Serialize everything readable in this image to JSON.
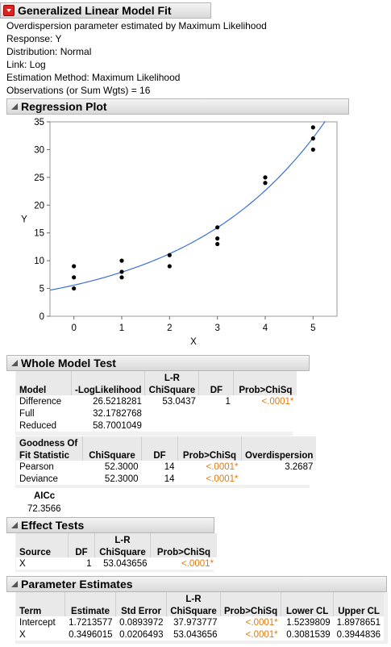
{
  "report": {
    "title": "Generalized Linear Model Fit",
    "info": [
      "Overdispersion parameter estimated by Maximum Likelihood",
      "Response: Y",
      "Distribution: Normal",
      "Link: Log",
      "Estimation Method: Maximum Likelihood",
      "Observations (or Sum Wgts) = 16"
    ]
  },
  "regression_plot": {
    "title": "Regression Plot",
    "chart_data": {
      "type": "scatter",
      "xlabel": "X",
      "ylabel": "Y",
      "xlim": [
        -0.5,
        5.5
      ],
      "ylim": [
        0,
        35
      ],
      "x_ticks": [
        "0",
        "1",
        "2",
        "3",
        "4",
        "5"
      ],
      "y_ticks": [
        "0",
        "5",
        "10",
        "15",
        "20",
        "25",
        "30",
        "35"
      ],
      "grid": false,
      "series": [
        {
          "points": [
            [
              0,
              9
            ],
            [
              0,
              7
            ],
            [
              0,
              5
            ],
            [
              1,
              10
            ],
            [
              1,
              8
            ],
            [
              1,
              7
            ],
            [
              2,
              11
            ],
            [
              2,
              9
            ],
            [
              3,
              16
            ],
            [
              3,
              14
            ],
            [
              3,
              13
            ],
            [
              4,
              25
            ],
            [
              4,
              24
            ],
            [
              5,
              34
            ],
            [
              5,
              32
            ],
            [
              5,
              30
            ]
          ]
        }
      ],
      "fit_curve": {
        "type": "line",
        "model": "exp(1.7213577 + 0.3496015*x)",
        "x_range": [
          -0.5,
          5.3
        ],
        "color": "#3b6fd8"
      }
    }
  },
  "whole_model_test": {
    "title": "Whole Model Test",
    "table1": {
      "headers": [
        [
          "",
          "Model"
        ],
        [
          "",
          "-LogLikelihood"
        ],
        [
          "L-R",
          "ChiSquare"
        ],
        [
          "",
          "DF"
        ],
        [
          "",
          "Prob>ChiSq"
        ]
      ],
      "rows": [
        [
          "Difference",
          "26.5218281",
          "53.0437",
          "1",
          "<.0001*"
        ],
        [
          "Full",
          "32.1782768",
          "",
          "",
          ""
        ],
        [
          "Reduced",
          "58.7001049",
          "",
          "",
          ""
        ]
      ]
    },
    "table2": {
      "headers": [
        [
          "Goodness Of",
          "Fit Statistic"
        ],
        [
          "",
          "ChiSquare"
        ],
        [
          "",
          "DF"
        ],
        [
          "",
          "Prob>ChiSq"
        ],
        [
          "",
          "Overdispersion"
        ]
      ],
      "rows": [
        [
          "Pearson",
          "52.3000",
          "14",
          "<.0001*",
          "3.2687"
        ],
        [
          "Deviance",
          "52.3000",
          "14",
          "<.0001*",
          ""
        ]
      ]
    },
    "aicc": {
      "label": "AICc",
      "value": "72.3566"
    }
  },
  "effect_tests": {
    "title": "Effect Tests",
    "headers": [
      [
        "",
        "Source"
      ],
      [
        "",
        "DF"
      ],
      [
        "L-R",
        "ChiSquare"
      ],
      [
        "",
        "Prob>ChiSq"
      ]
    ],
    "rows": [
      [
        "X",
        "1",
        "53.043656",
        "<.0001*"
      ]
    ]
  },
  "parameter_estimates": {
    "title": "Parameter Estimates",
    "headers": [
      [
        "",
        "Term"
      ],
      [
        "",
        "Estimate"
      ],
      [
        "",
        "Std Error"
      ],
      [
        "L-R",
        "ChiSquare"
      ],
      [
        "",
        "Prob>ChiSq"
      ],
      [
        "",
        "Lower CL"
      ],
      [
        "",
        "Upper CL"
      ]
    ],
    "rows": [
      [
        "Intercept",
        "1.7213577",
        "0.0893972",
        "37.973777",
        "<.0001*",
        "1.5239809",
        "1.8978651"
      ],
      [
        "X",
        "0.3496015",
        "0.0206493",
        "53.043656",
        "<.0001*",
        "0.3081539",
        "0.3944836"
      ]
    ]
  },
  "colors": {
    "accent_orange": "#e07a10",
    "fit_line": "#3b6fd8",
    "menu_red": "#d22222"
  }
}
